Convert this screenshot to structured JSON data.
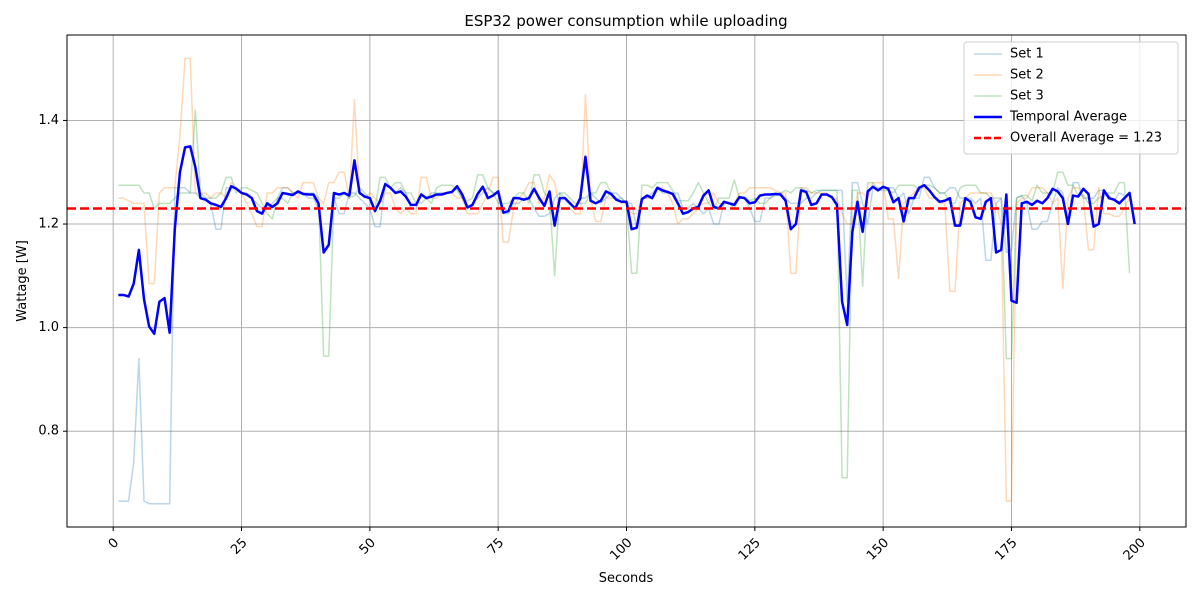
{
  "chart_data": {
    "type": "line",
    "title": "ESP32 power consumption while uploading",
    "xlabel": "Seconds",
    "ylabel": "Wattage [W]",
    "xlim": [
      -9,
      209
    ],
    "ylim": [
      0.615,
      1.565
    ],
    "xticks": [
      0,
      25,
      50,
      75,
      100,
      125,
      150,
      175,
      200
    ],
    "yticks": [
      0.8,
      1.0,
      1.2,
      1.4
    ],
    "ytick_labels": [
      "0.8",
      "1.0",
      "1.2",
      "1.4"
    ],
    "xtick_rotation": 45,
    "grid": true,
    "legend_position": "top-right",
    "x_start": 1,
    "series": [
      {
        "name": "Set 1",
        "color": "#1f77b4",
        "opacity": 0.3,
        "width": 1.5,
        "values": [
          0.665,
          0.665,
          0.665,
          0.74,
          0.94,
          0.665,
          0.66,
          0.66,
          0.66,
          0.66,
          0.66,
          1.27,
          1.27,
          1.27,
          1.26,
          1.26,
          1.25,
          1.25,
          1.24,
          1.19,
          1.19,
          1.27,
          1.27,
          1.27,
          1.26,
          1.26,
          1.25,
          1.24,
          1.23,
          1.23,
          1.24,
          1.25,
          1.27,
          1.27,
          1.26,
          1.26,
          1.26,
          1.25,
          1.25,
          1.23,
          1.15,
          1.16,
          1.25,
          1.22,
          1.22,
          1.26,
          1.26,
          1.25,
          1.24,
          1.23,
          1.195,
          1.195,
          1.28,
          1.27,
          1.26,
          1.27,
          1.26,
          1.23,
          1.23,
          1.26,
          1.25,
          1.26,
          1.26,
          1.26,
          1.26,
          1.26,
          1.27,
          1.25,
          1.23,
          1.24,
          1.25,
          1.26,
          1.27,
          1.26,
          1.26,
          1.22,
          1.22,
          1.24,
          1.24,
          1.25,
          1.25,
          1.23,
          1.215,
          1.215,
          1.22,
          1.25,
          1.26,
          1.25,
          1.24,
          1.23,
          1.25,
          1.25,
          1.26,
          1.25,
          1.24,
          1.25,
          1.26,
          1.26,
          1.25,
          1.24,
          1.24,
          1.19,
          1.25,
          1.25,
          1.26,
          1.27,
          1.26,
          1.26,
          1.26,
          1.26,
          1.23,
          1.23,
          1.24,
          1.23,
          1.22,
          1.23,
          1.2,
          1.2,
          1.24,
          1.24,
          1.23,
          1.25,
          1.25,
          1.23,
          1.205,
          1.205,
          1.25,
          1.25,
          1.26,
          1.26,
          1.25,
          1.24,
          1.24,
          1.24,
          1.25,
          1.25,
          1.26,
          1.265,
          1.265,
          1.265,
          1.265,
          1.265,
          1.05,
          1.28,
          1.28,
          1.24,
          1.2,
          1.27,
          1.27,
          1.27,
          1.27,
          1.27,
          1.25,
          1.26,
          1.22,
          1.25,
          1.25,
          1.29,
          1.29,
          1.27,
          1.26,
          1.26,
          1.27,
          1.27,
          1.25,
          1.25,
          1.25,
          1.24,
          1.25,
          1.13,
          1.13,
          1.24,
          1.25,
          1.145,
          1.15,
          1.25,
          1.255,
          1.24,
          1.19,
          1.19,
          1.205,
          1.205,
          1.24,
          1.27,
          1.26,
          1.2,
          1.28,
          1.28,
          1.25,
          1.25,
          1.25,
          1.265,
          1.265,
          1.255,
          1.245,
          1.26,
          1.255
        ]
      },
      {
        "name": "Set 2",
        "color": "#ff7f0e",
        "opacity": 0.3,
        "width": 1.5,
        "values": [
          1.25,
          1.25,
          1.245,
          1.24,
          1.24,
          1.24,
          1.085,
          1.085,
          1.26,
          1.27,
          1.27,
          1.27,
          1.37,
          1.52,
          1.52,
          1.26,
          1.26,
          1.26,
          1.25,
          1.26,
          1.26,
          1.25,
          1.28,
          1.27,
          1.26,
          1.24,
          1.22,
          1.195,
          1.195,
          1.26,
          1.26,
          1.27,
          1.27,
          1.27,
          1.26,
          1.25,
          1.28,
          1.28,
          1.28,
          1.25,
          1.24,
          1.28,
          1.28,
          1.3,
          1.3,
          1.25,
          1.44,
          1.26,
          1.25,
          1.26,
          1.25,
          1.24,
          1.26,
          1.26,
          1.23,
          1.22,
          1.23,
          1.22,
          1.22,
          1.29,
          1.29,
          1.25,
          1.25,
          1.26,
          1.26,
          1.26,
          1.25,
          1.25,
          1.22,
          1.22,
          1.22,
          1.24,
          1.26,
          1.29,
          1.29,
          1.165,
          1.165,
          1.23,
          1.25,
          1.26,
          1.28,
          1.28,
          1.24,
          1.25,
          1.295,
          1.28,
          1.23,
          1.23,
          1.23,
          1.22,
          1.22,
          1.45,
          1.25,
          1.205,
          1.205,
          1.25,
          1.25,
          1.25,
          1.24,
          1.24,
          1.22,
          1.22,
          1.25,
          1.25,
          1.25,
          1.27,
          1.27,
          1.26,
          1.24,
          1.2,
          1.21,
          1.21,
          1.22,
          1.23,
          1.24,
          1.24,
          1.26,
          1.24,
          1.24,
          1.24,
          1.24,
          1.26,
          1.26,
          1.27,
          1.27,
          1.27,
          1.27,
          1.27,
          1.265,
          1.26,
          1.26,
          1.105,
          1.105,
          1.27,
          1.27,
          1.26,
          1.26,
          1.26,
          1.26,
          1.25,
          1.25,
          1.22,
          1.2,
          1.2,
          1.26,
          1.26,
          1.25,
          1.28,
          1.28,
          1.28,
          1.21,
          1.21,
          1.095,
          1.24,
          1.25,
          1.26,
          1.27,
          1.27,
          1.25,
          1.25,
          1.24,
          1.24,
          1.07,
          1.07,
          1.24,
          1.25,
          1.26,
          1.26,
          1.26,
          1.26,
          1.26,
          1.24,
          1.2,
          0.665,
          0.665,
          1.24,
          1.25,
          1.25,
          1.27,
          1.27,
          1.27,
          1.26,
          1.24,
          1.25,
          1.075,
          1.25,
          1.27,
          1.27,
          1.25,
          1.15,
          1.15,
          1.27,
          1.22,
          1.22,
          1.215,
          1.215,
          1.23,
          1.25
        ]
      },
      {
        "name": "Set 3",
        "color": "#2ca02c",
        "opacity": 0.3,
        "width": 1.5,
        "values": [
          1.275,
          1.275,
          1.275,
          1.275,
          1.275,
          1.26,
          1.26,
          1.23,
          1.24,
          1.24,
          1.24,
          1.25,
          1.26,
          1.26,
          1.26,
          1.42,
          1.26,
          1.25,
          1.25,
          1.25,
          1.26,
          1.29,
          1.29,
          1.26,
          1.27,
          1.27,
          1.265,
          1.26,
          1.24,
          1.22,
          1.21,
          1.25,
          1.25,
          1.24,
          1.26,
          1.26,
          1.26,
          1.26,
          1.26,
          1.25,
          0.945,
          0.945,
          1.25,
          1.25,
          1.26,
          1.25,
          1.255,
          1.27,
          1.26,
          1.25,
          1.23,
          1.29,
          1.29,
          1.27,
          1.28,
          1.28,
          1.26,
          1.26,
          1.24,
          1.24,
          1.25,
          1.24,
          1.27,
          1.275,
          1.275,
          1.275,
          1.265,
          1.25,
          1.245,
          1.25,
          1.295,
          1.295,
          1.27,
          1.26,
          1.24,
          1.24,
          1.24,
          1.25,
          1.26,
          1.26,
          1.24,
          1.295,
          1.295,
          1.26,
          1.25,
          1.1,
          1.26,
          1.26,
          1.25,
          1.24,
          1.24,
          1.24,
          1.26,
          1.26,
          1.28,
          1.28,
          1.26,
          1.25,
          1.25,
          1.24,
          1.105,
          1.105,
          1.275,
          1.275,
          1.27,
          1.28,
          1.28,
          1.28,
          1.265,
          1.245,
          1.245,
          1.245,
          1.26,
          1.28,
          1.26,
          1.24,
          1.23,
          1.25,
          1.25,
          1.25,
          1.285,
          1.25,
          1.25,
          1.245,
          1.25,
          1.24,
          1.24,
          1.25,
          1.255,
          1.26,
          1.265,
          1.26,
          1.27,
          1.27,
          1.265,
          1.26,
          1.265,
          1.265,
          1.265,
          1.265,
          1.265,
          0.71,
          0.71,
          1.265,
          1.265,
          1.08,
          1.28,
          1.28,
          1.265,
          1.265,
          1.265,
          1.26,
          1.275,
          1.275,
          1.275,
          1.275,
          1.265,
          1.275,
          1.275,
          1.27,
          1.26,
          1.26,
          1.24,
          1.24,
          1.27,
          1.275,
          1.275,
          1.275,
          1.26,
          1.26,
          1.25,
          1.25,
          1.25,
          0.94,
          0.94,
          1.25,
          1.255,
          1.255,
          1.245,
          1.275,
          1.26,
          1.26,
          1.26,
          1.3,
          1.3,
          1.275,
          1.275,
          1.255,
          1.255,
          1.24,
          1.24,
          1.25,
          1.255,
          1.26,
          1.26,
          1.28,
          1.28,
          1.105
        ]
      },
      {
        "name": "Temporal Average",
        "color": "#0000ff",
        "opacity": 1,
        "width": 2.5,
        "values": [
          1.063,
          1.063,
          1.06,
          1.085,
          1.15,
          1.055,
          1.002,
          0.988,
          1.05,
          1.057,
          0.99,
          1.19,
          1.3,
          1.348,
          1.35,
          1.31,
          1.25,
          1.247,
          1.24,
          1.237,
          1.233,
          1.25,
          1.273,
          1.268,
          1.26,
          1.257,
          1.25,
          1.225,
          1.22,
          1.24,
          1.233,
          1.24,
          1.26,
          1.258,
          1.256,
          1.263,
          1.258,
          1.257,
          1.257,
          1.24,
          1.145,
          1.16,
          1.26,
          1.257,
          1.26,
          1.255,
          1.323,
          1.26,
          1.253,
          1.25,
          1.225,
          1.245,
          1.277,
          1.27,
          1.26,
          1.263,
          1.253,
          1.237,
          1.237,
          1.257,
          1.25,
          1.253,
          1.257,
          1.257,
          1.26,
          1.262,
          1.273,
          1.257,
          1.232,
          1.237,
          1.258,
          1.272,
          1.25,
          1.255,
          1.263,
          1.222,
          1.225,
          1.25,
          1.25,
          1.247,
          1.25,
          1.268,
          1.25,
          1.235,
          1.263,
          1.197,
          1.25,
          1.25,
          1.24,
          1.23,
          1.25,
          1.33,
          1.245,
          1.24,
          1.245,
          1.263,
          1.258,
          1.247,
          1.243,
          1.243,
          1.19,
          1.193,
          1.248,
          1.255,
          1.25,
          1.27,
          1.265,
          1.262,
          1.258,
          1.24,
          1.22,
          1.223,
          1.23,
          1.233,
          1.255,
          1.265,
          1.233,
          1.23,
          1.243,
          1.24,
          1.237,
          1.252,
          1.25,
          1.24,
          1.242,
          1.255,
          1.257,
          1.257,
          1.258,
          1.257,
          1.245,
          1.19,
          1.2,
          1.265,
          1.262,
          1.237,
          1.24,
          1.257,
          1.257,
          1.252,
          1.237,
          1.05,
          1.005,
          1.185,
          1.243,
          1.185,
          1.263,
          1.272,
          1.265,
          1.272,
          1.268,
          1.242,
          1.25,
          1.205,
          1.25,
          1.25,
          1.27,
          1.275,
          1.265,
          1.252,
          1.243,
          1.245,
          1.25,
          1.197,
          1.197,
          1.25,
          1.243,
          1.213,
          1.21,
          1.243,
          1.25,
          1.145,
          1.15,
          1.257,
          1.052,
          1.048,
          1.24,
          1.243,
          1.237,
          1.245,
          1.24,
          1.25,
          1.268,
          1.263,
          1.25,
          1.2,
          1.255,
          1.253,
          1.268,
          1.258,
          1.195,
          1.2,
          1.265,
          1.25,
          1.247,
          1.24,
          1.25,
          1.26,
          1.2
        ]
      }
    ],
    "reference_line": {
      "name": "Overall Average = 1.23",
      "value": 1.23,
      "color": "#ff0000",
      "style": "dashed"
    }
  }
}
